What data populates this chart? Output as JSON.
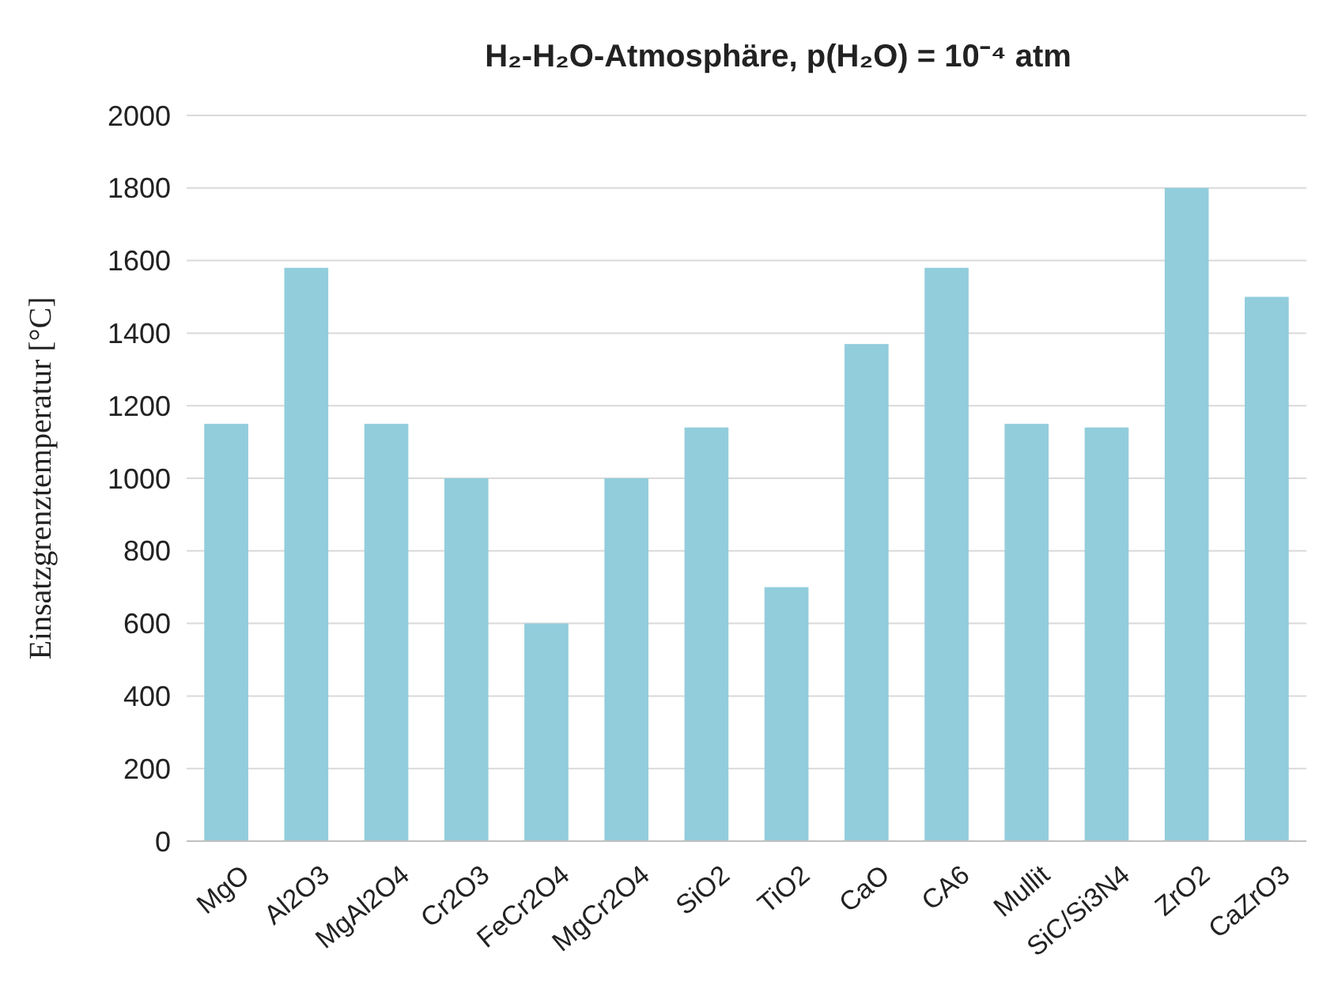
{
  "chart_data": {
    "type": "bar",
    "title": "H₂-H₂O-Atmosphäre, p(H₂O) = 10⁻⁴ atm",
    "ylabel": "Einsatzgrenztemperatur [°C]",
    "categories": [
      "MgO",
      "Al2O3",
      "MgAl2O4",
      "Cr2O3",
      "FeCr2O4",
      "MgCr2O4",
      "SiO2",
      "TiO2",
      "CaO",
      "CA6",
      "Mullit",
      "SiC/Si3N4",
      "ZrO2",
      "CaZrO3"
    ],
    "values": [
      1150,
      1580,
      1150,
      1000,
      600,
      1000,
      1140,
      700,
      1370,
      1580,
      1150,
      1140,
      1800,
      1500
    ],
    "color": "#92cddc",
    "ylim": [
      0,
      2000
    ],
    "yticks": [
      0,
      200,
      400,
      600,
      800,
      1000,
      1200,
      1400,
      1600,
      1800,
      2000
    ],
    "grid": "y"
  }
}
